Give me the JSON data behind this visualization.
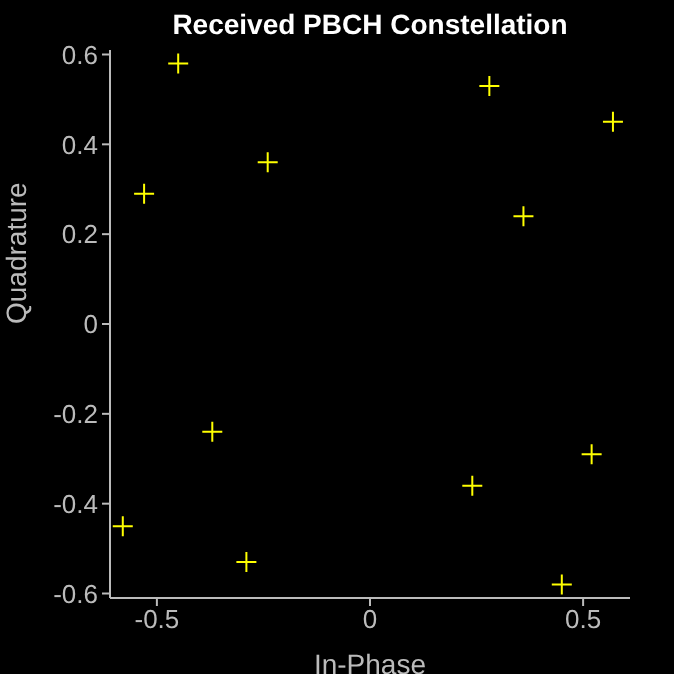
{
  "chart_data": {
    "type": "scatter",
    "title": "Received PBCH Constellation",
    "xlabel": "In-Phase",
    "ylabel": "Quadrature",
    "x": [
      -0.45,
      -0.53,
      -0.24,
      0.28,
      0.57,
      0.36,
      -0.37,
      -0.58,
      -0.29,
      0.24,
      0.52,
      0.45
    ],
    "series": [
      {
        "color": "#ffff00",
        "values": [
          0.58,
          0.29,
          0.36,
          0.53,
          0.45,
          0.24,
          -0.24,
          -0.45,
          -0.53,
          -0.36,
          -0.29,
          -0.58
        ]
      }
    ],
    "xlim": [
      -0.61,
      0.61
    ],
    "ylim": [
      -0.61,
      0.61
    ],
    "xticks": [
      -0.5,
      0,
      0.5
    ],
    "yticks": [
      -0.6,
      -0.4,
      -0.2,
      0,
      0.2,
      0.4,
      0.6
    ],
    "marker": "cross",
    "grid": false,
    "legend": false
  }
}
